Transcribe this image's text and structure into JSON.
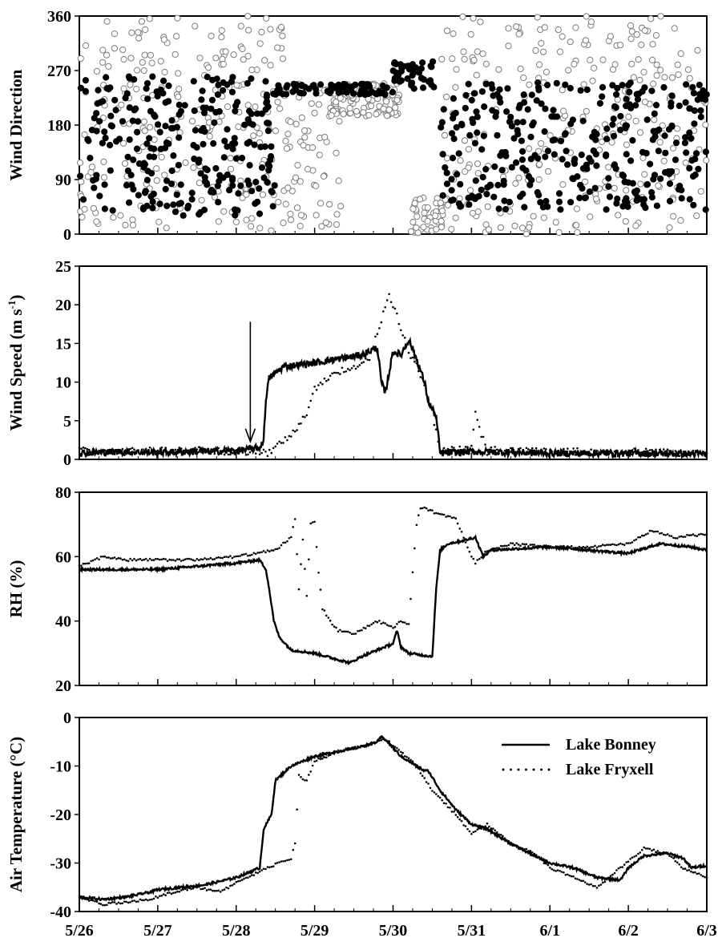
{
  "chart_data": [
    {
      "type": "scatter",
      "ylabel": "Wind Direction",
      "ylim": [
        0,
        360
      ],
      "yticks": [
        "0",
        "90",
        "180",
        "270",
        "360"
      ],
      "xlim": [
        0,
        8
      ],
      "series": [
        {
          "name": "Lake Bonney",
          "marker": "filled-circle",
          "bands": [
            {
              "x": [
                0.0,
                2.5
              ],
              "y": [
                [
                  30,
                  130
                ],
                [
                  140,
                  260
                ]
              ],
              "n": 260
            },
            {
              "x": [
                2.5,
                4.0
              ],
              "y": [
                [
                  230,
                  248
                ]
              ],
              "n": 80
            },
            {
              "x": [
                4.0,
                4.55
              ],
              "y": [
                [
                  238,
                  285
                ]
              ],
              "n": 40
            },
            {
              "x": [
                4.6,
                8.0
              ],
              "y": [
                [
                  40,
                  140
                ],
                [
                  150,
                  250
                ]
              ],
              "n": 330
            }
          ]
        },
        {
          "name": "Lake Fryxell",
          "marker": "open-circle",
          "bands": [
            {
              "x": [
                0.0,
                2.6
              ],
              "y": [
                [
                  5,
                  120
                ],
                [
                  120,
                  250
                ],
                [
                  260,
                  360
                ]
              ],
              "n": 230
            },
            {
              "x": [
                2.6,
                3.4
              ],
              "y": [
                [
                  10,
                  140
                ],
                [
                  140,
                  250
                ]
              ],
              "n": 70
            },
            {
              "x": [
                3.2,
                4.1
              ],
              "y": [
                [
                  195,
                  250
                ]
              ],
              "n": 120
            },
            {
              "x": [
                4.2,
                4.7
              ],
              "y": [
                [
                  0,
                  60
                ]
              ],
              "n": 45
            },
            {
              "x": [
                4.6,
                8.0
              ],
              "y": [
                [
                  0,
                  120
                ],
                [
                  120,
                  250
                ],
                [
                  250,
                  360
                ]
              ],
              "n": 260
            }
          ]
        }
      ]
    },
    {
      "type": "line",
      "ylabel": "Wind Speed (m s",
      "ylabel_sup": "-1",
      "ylabel_close": ")",
      "ylim": [
        0,
        25
      ],
      "yticks": [
        "0",
        "5",
        "10",
        "15",
        "20",
        "25"
      ],
      "xlim": [
        0,
        8
      ],
      "annotation": {
        "type": "arrow",
        "x": 2.18,
        "y_from": 17.8,
        "y_to": 2.3
      },
      "series": [
        {
          "name": "Lake Bonney",
          "style": "solid",
          "x": [
            0,
            0.5,
            1.0,
            1.5,
            2.0,
            2.3,
            2.35,
            2.38,
            2.42,
            2.6,
            3.0,
            3.3,
            3.6,
            3.8,
            3.85,
            3.9,
            4.0,
            4.1,
            4.2,
            4.3,
            4.4,
            4.45,
            4.55,
            4.6,
            5.0,
            6.0,
            7.0,
            8.0
          ],
          "y": [
            0.8,
            1.0,
            0.9,
            1.0,
            1.1,
            1.5,
            2.5,
            8.0,
            10.5,
            12.0,
            12.5,
            13.0,
            13.5,
            14.5,
            10.0,
            8.5,
            14.0,
            13.5,
            15.5,
            13.0,
            10.0,
            7.5,
            5.5,
            0.8,
            1.0,
            0.8,
            0.8,
            0.7
          ]
        },
        {
          "name": "Lake Fryxell",
          "style": "dotted",
          "x": [
            0,
            0.5,
            1.0,
            1.5,
            2.0,
            2.4,
            2.7,
            2.9,
            3.0,
            3.2,
            3.5,
            3.7,
            3.85,
            3.95,
            4.05,
            4.2,
            4.35,
            4.5,
            4.6,
            5.0,
            5.05,
            5.1,
            5.2,
            5.3,
            6.0,
            7.0,
            8.0
          ],
          "y": [
            1.2,
            1.0,
            1.1,
            1.2,
            1.0,
            0.8,
            3.0,
            6.0,
            9.0,
            11.0,
            12.0,
            13.0,
            18.0,
            21.0,
            18.5,
            14.0,
            11.0,
            6.0,
            1.0,
            1.5,
            6.5,
            4.0,
            1.0,
            1.2,
            1.0,
            1.0,
            0.8
          ]
        }
      ]
    },
    {
      "type": "line",
      "ylabel": "RH (%)",
      "ylim": [
        20,
        80
      ],
      "yticks": [
        "20",
        "40",
        "60",
        "80"
      ],
      "xlim": [
        0,
        8
      ],
      "series": [
        {
          "name": "Lake Bonney",
          "style": "solid",
          "x": [
            0,
            0.5,
            1.0,
            1.5,
            2.0,
            2.3,
            2.38,
            2.42,
            2.48,
            2.55,
            2.7,
            3.0,
            3.3,
            3.45,
            3.6,
            4.0,
            4.05,
            4.1,
            4.2,
            4.5,
            4.55,
            4.6,
            4.7,
            4.9,
            5.05,
            5.15,
            5.25,
            6.0,
            6.5,
            7.0,
            7.4,
            7.8,
            8.0
          ],
          "y": [
            56,
            56,
            56,
            57,
            58,
            59,
            56,
            50,
            40,
            35,
            31,
            30,
            28,
            27,
            29,
            33,
            37,
            32,
            30,
            29,
            50,
            62,
            64,
            65,
            66,
            60,
            62,
            63,
            62,
            61,
            64,
            63,
            62
          ]
        },
        {
          "name": "Lake Fryxell",
          "style": "dotted",
          "x": [
            0,
            0.3,
            0.6,
            1.0,
            1.5,
            2.0,
            2.5,
            2.7,
            2.75,
            2.8,
            2.85,
            2.9,
            2.95,
            3.0,
            3.05,
            3.1,
            3.2,
            3.3,
            3.5,
            3.8,
            4.0,
            4.1,
            4.2,
            4.25,
            4.3,
            4.35,
            4.4,
            4.5,
            4.6,
            4.8,
            5.0,
            5.05,
            5.2,
            5.5,
            6.0,
            6.5,
            7.0,
            7.3,
            7.6,
            8.0
          ],
          "y": [
            57,
            60,
            59,
            59,
            59,
            60,
            62,
            66,
            72,
            50,
            65,
            48,
            70,
            71,
            55,
            44,
            40,
            37,
            36,
            40,
            38,
            40,
            39,
            55,
            70,
            75,
            75,
            74,
            73,
            72,
            60,
            58,
            62,
            64,
            63,
            63,
            64,
            68,
            66,
            67
          ]
        }
      ]
    },
    {
      "type": "line",
      "ylabel": "Air Temperature (°C)",
      "ylim": [
        -40,
        0
      ],
      "yticks": [
        "-40",
        "-30",
        "-20",
        "-10",
        "0"
      ],
      "xlim": [
        0,
        8
      ],
      "xticks": [
        "5/26",
        "5/27",
        "5/28",
        "5/29",
        "5/30",
        "5/31",
        "6/1",
        "6/2",
        "6/3"
      ],
      "legend": {
        "placement": "top-right"
      },
      "series": [
        {
          "name": "Lake Bonney",
          "style": "solid",
          "x": [
            0,
            0.3,
            0.6,
            0.9,
            1.0,
            1.3,
            1.6,
            2.0,
            2.3,
            2.35,
            2.45,
            2.5,
            2.7,
            3.0,
            3.3,
            3.6,
            3.8,
            3.85,
            3.9,
            4.1,
            4.4,
            4.45,
            4.6,
            4.8,
            5.0,
            5.2,
            5.5,
            5.8,
            6.0,
            6.3,
            6.6,
            6.9,
            7.0,
            7.2,
            7.5,
            7.7,
            7.8,
            8.0
          ],
          "y": [
            -37,
            -37.5,
            -37,
            -36,
            -35.5,
            -35,
            -34.5,
            -33,
            -31,
            -23,
            -20,
            -13,
            -10,
            -8,
            -7,
            -6,
            -5,
            -4,
            -4.5,
            -8,
            -11,
            -11,
            -15,
            -19,
            -22,
            -23,
            -26,
            -28.5,
            -30,
            -31,
            -33,
            -33.5,
            -31,
            -28.5,
            -28,
            -29,
            -31,
            -30.5
          ]
        },
        {
          "name": "Lake Fryxell",
          "style": "dotted",
          "x": [
            0,
            0.3,
            0.6,
            0.9,
            1.2,
            1.5,
            1.8,
            2.0,
            2.4,
            2.7,
            2.75,
            2.8,
            2.9,
            3.0,
            3.3,
            3.6,
            3.8,
            3.9,
            4.1,
            4.3,
            4.5,
            4.8,
            5.0,
            5.2,
            5.5,
            5.8,
            6.0,
            6.3,
            6.6,
            6.9,
            7.2,
            7.5,
            7.7,
            8.0
          ],
          "y": [
            -37,
            -38.5,
            -38,
            -37.5,
            -36,
            -35,
            -36,
            -34,
            -31,
            -29,
            -26,
            -12,
            -13,
            -9,
            -7,
            -6,
            -5,
            -4.5,
            -7,
            -10,
            -15,
            -20,
            -24,
            -22,
            -26,
            -28,
            -31,
            -33,
            -35,
            -31,
            -27,
            -28,
            -31,
            -33
          ]
        }
      ]
    }
  ]
}
